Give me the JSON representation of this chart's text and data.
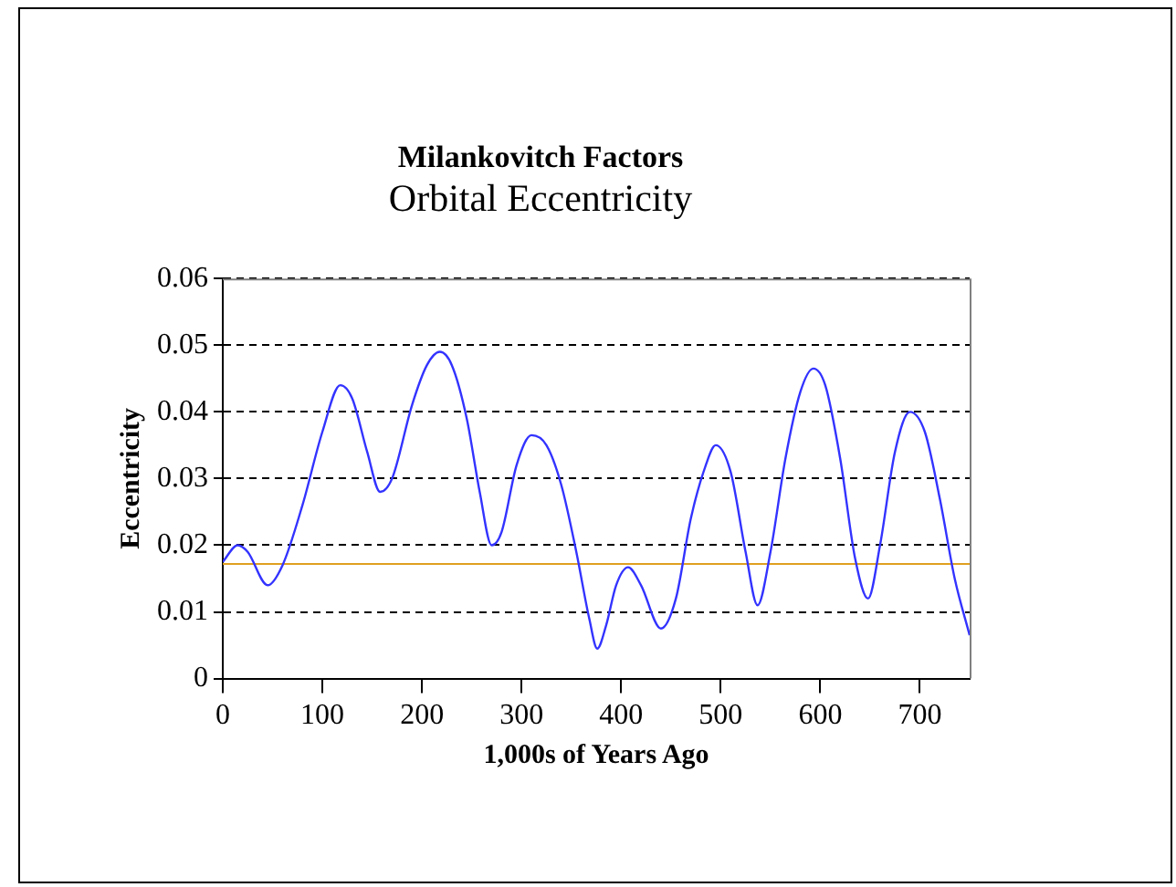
{
  "chart_data": {
    "type": "line",
    "title": "Milankovitch Factors",
    "subtitle": "Orbital Eccentricity",
    "xlabel": "1,000s of Years Ago",
    "ylabel": "Eccentricity",
    "xlim": [
      0,
      750
    ],
    "xticks": [
      0,
      100,
      200,
      300,
      400,
      500,
      600,
      700
    ],
    "ylim": [
      0,
      0.06
    ],
    "yticks": [
      0,
      0.01,
      0.02,
      0.03,
      0.04,
      0.05,
      0.06
    ],
    "grid": "y",
    "legend": false,
    "marker": "none",
    "line_style": "solid",
    "ref_lines": [
      {
        "axis": "y",
        "value": 0.0172,
        "color": "#e0a020"
      }
    ],
    "series": [
      {
        "color": "#3333ff",
        "x": [
          0,
          15,
          25,
          45,
          60,
          80,
          100,
          118,
          130,
          145,
          158,
          170,
          190,
          205,
          218,
          230,
          245,
          258,
          270,
          280,
          295,
          310,
          325,
          340,
          355,
          368,
          376,
          385,
          395,
          407,
          420,
          440,
          455,
          470,
          485,
          495,
          510,
          525,
          537,
          550,
          565,
          580,
          593,
          605,
          620,
          635,
          648,
          660,
          675,
          690,
          705,
          720,
          735,
          750
        ],
        "values": [
          0.0175,
          0.02,
          0.019,
          0.014,
          0.017,
          0.026,
          0.037,
          0.044,
          0.042,
          0.034,
          0.028,
          0.03,
          0.041,
          0.047,
          0.049,
          0.047,
          0.039,
          0.028,
          0.02,
          0.022,
          0.032,
          0.0365,
          0.035,
          0.029,
          0.019,
          0.009,
          0.0045,
          0.008,
          0.014,
          0.0167,
          0.014,
          0.0075,
          0.012,
          0.024,
          0.032,
          0.035,
          0.031,
          0.019,
          0.011,
          0.019,
          0.033,
          0.043,
          0.0465,
          0.044,
          0.033,
          0.018,
          0.012,
          0.02,
          0.034,
          0.04,
          0.037,
          0.027,
          0.015,
          0.0065
        ]
      }
    ]
  }
}
